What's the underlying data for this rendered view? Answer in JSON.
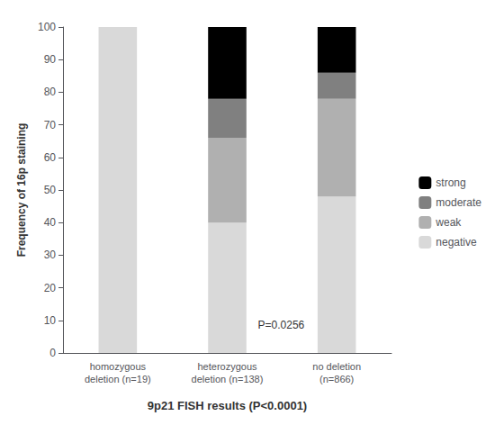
{
  "chart_data": {
    "type": "bar",
    "stacked": true,
    "categories": [
      "homozygous\ndeletion (n=19)",
      "heterozygous\ndeletion (n=138)",
      "no deletion\n(n=866)"
    ],
    "xlabel": "9p21 FISH results (P<0.0001)",
    "ylabel": "Frequency of 16p staining",
    "series": [
      {
        "name": "negative",
        "color": "#d9d9d9",
        "values": [
          100,
          40,
          48
        ]
      },
      {
        "name": "weak",
        "color": "#b0b0b0",
        "values": [
          0,
          26,
          30
        ]
      },
      {
        "name": "moderate",
        "color": "#808080",
        "values": [
          0,
          12,
          8
        ]
      },
      {
        "name": "strong",
        "color": "#000000",
        "values": [
          0,
          22,
          14
        ]
      }
    ],
    "ylim": [
      0,
      100
    ],
    "yticks": [
      0,
      10,
      20,
      30,
      40,
      50,
      60,
      70,
      80,
      90,
      100
    ],
    "grid": false,
    "legend": "right",
    "annotations": [
      {
        "text": "P=0.0256",
        "x": "heterozygous\ndeletion (n=138)",
        "y": 7
      }
    ]
  }
}
